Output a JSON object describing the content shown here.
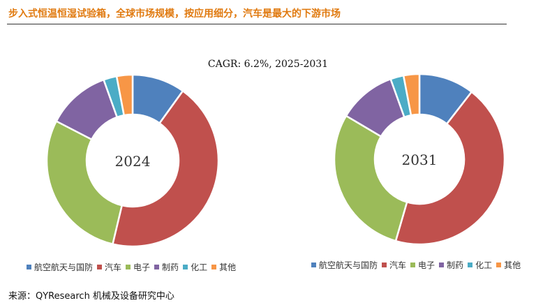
{
  "header": {
    "title": "步入式恒温恒湿试验箱，全球市场规模，按应用细分，汽车是最大的下游市场"
  },
  "chart_data": [
    {
      "type": "donut",
      "center_label": "2024",
      "subtitle": "CAGR:   6.2%, 2025-2031",
      "categories": [
        "航空航天与国防",
        "汽车",
        "电子",
        "制药",
        "化工",
        "其他"
      ],
      "values": [
        10,
        44,
        29,
        12,
        2.5,
        3
      ],
      "colors": [
        "#4f81bd",
        "#c0504d",
        "#9bbb59",
        "#8064a2",
        "#4bacc6",
        "#f79646"
      ],
      "legend": "bottom"
    },
    {
      "type": "donut",
      "center_label": "2031",
      "categories": [
        "航空航天与国防",
        "汽车",
        "电子",
        "制药",
        "化工",
        "其他"
      ],
      "values": [
        10.5,
        44,
        29,
        11,
        2.5,
        3
      ],
      "colors": [
        "#4f81bd",
        "#c0504d",
        "#9bbb59",
        "#8064a2",
        "#4bacc6",
        "#f79646"
      ],
      "legend": "bottom"
    }
  ],
  "footer": {
    "source": "来源：QYResearch 机械及设备研究中心"
  }
}
